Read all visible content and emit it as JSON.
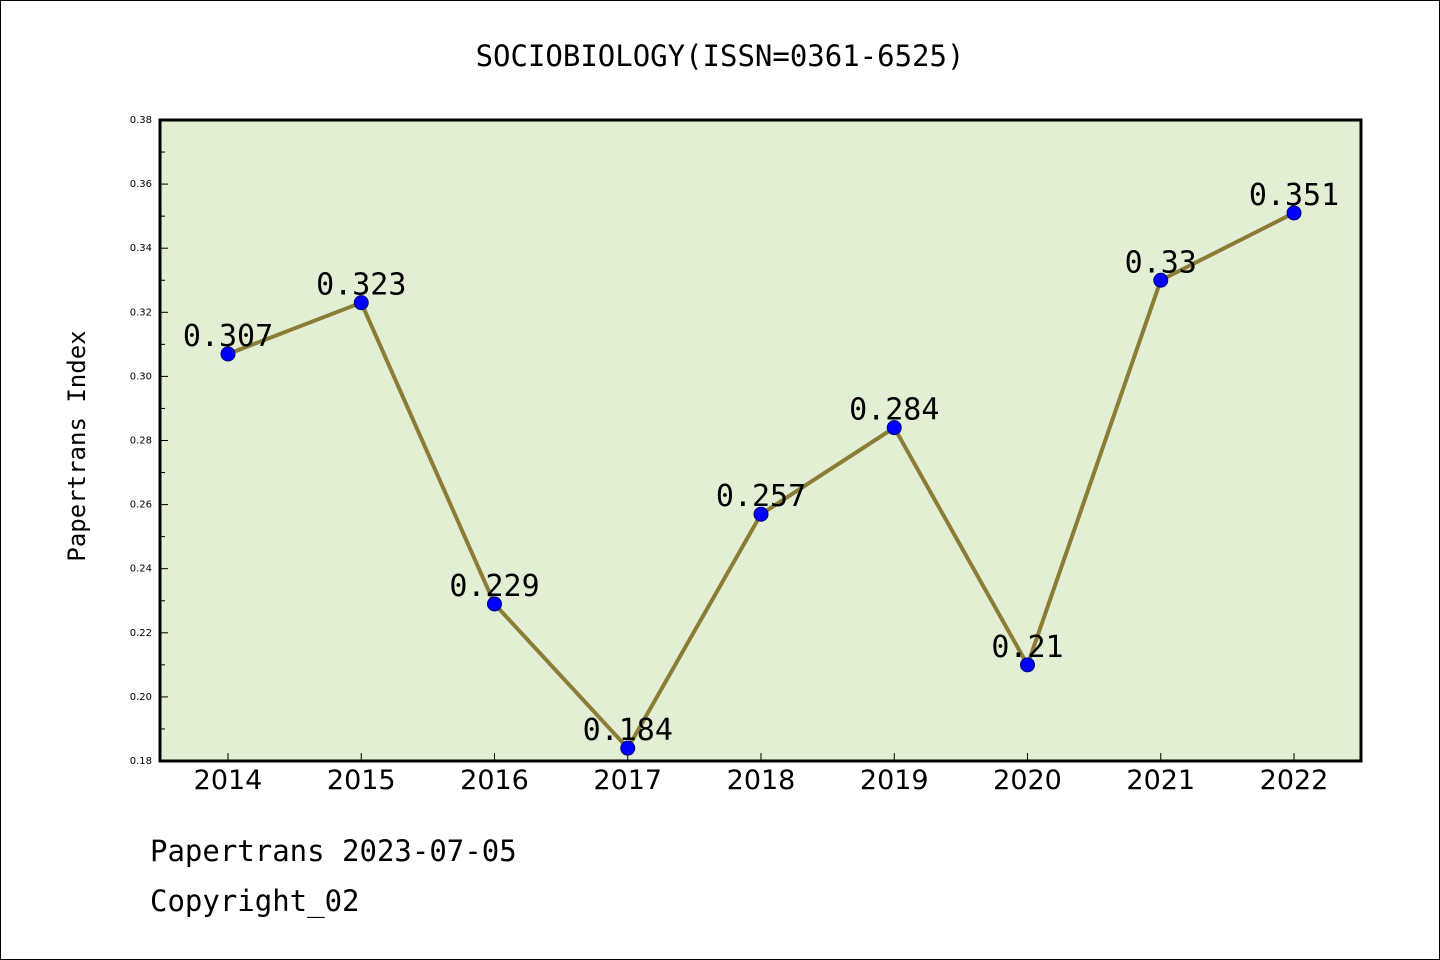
{
  "chart_data": {
    "type": "line",
    "title": "SOCIOBIOLOGY(ISSN=0361-6525)",
    "xlabel": "",
    "ylabel": "Papertrans Index",
    "categories": [
      "2014",
      "2015",
      "2016",
      "2017",
      "2018",
      "2019",
      "2020",
      "2021",
      "2022"
    ],
    "series": [
      {
        "values": [
          0.307,
          0.323,
          0.229,
          0.184,
          0.257,
          0.284,
          0.21,
          0.33,
          0.351
        ],
        "labels": [
          "0.307",
          "0.323",
          "0.229",
          "0.184",
          "0.257",
          "0.284",
          "0.21",
          "0.33",
          "0.351"
        ]
      }
    ],
    "ylim": [
      0.18,
      0.38
    ],
    "y_ticks": [
      "0.18",
      "0.20",
      "0.22",
      "0.24",
      "0.26",
      "0.28",
      "0.30",
      "0.32",
      "0.34",
      "0.36",
      "0.38"
    ],
    "grid": false,
    "legend": "none",
    "colors": {
      "plot_background": "#e2efd4",
      "line": "#8b7d36",
      "marker_fill": "#0000ff",
      "marker_edge": "#000080"
    }
  },
  "footer": {
    "line1": "Papertrans 2023-07-05",
    "line2": "Copyright_02"
  }
}
